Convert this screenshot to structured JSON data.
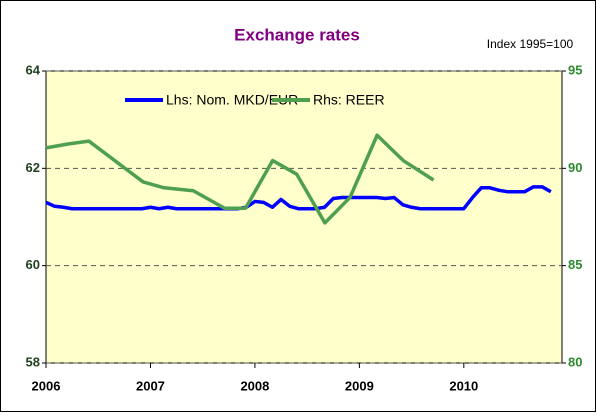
{
  "chart_data": {
    "type": "line",
    "title": "Exchange rates",
    "annotation": "Index 1995=100",
    "series": [
      {
        "name": "Lhs: Nom. MKD/EUR",
        "color": "#0000ff",
        "axis": "y",
        "x": [
          2006.0,
          2006.083,
          2006.167,
          2006.25,
          2006.333,
          2006.417,
          2006.5,
          2006.583,
          2006.667,
          2006.75,
          2006.833,
          2006.917,
          2007.0,
          2007.083,
          2007.167,
          2007.25,
          2007.333,
          2007.417,
          2007.5,
          2007.583,
          2007.667,
          2007.75,
          2007.833,
          2007.917,
          2008.0,
          2008.083,
          2008.167,
          2008.25,
          2008.333,
          2008.417,
          2008.5,
          2008.583,
          2008.667,
          2008.75,
          2008.833,
          2008.917,
          2009.0,
          2009.083,
          2009.167,
          2009.25,
          2009.333,
          2009.417,
          2009.5,
          2009.583,
          2009.667,
          2009.75,
          2009.833,
          2009.917,
          2010.0,
          2010.083,
          2010.167,
          2010.25,
          2010.333,
          2010.417,
          2010.5,
          2010.583,
          2010.667,
          2010.75,
          2010.833
        ],
        "values": [
          61.3,
          61.22,
          61.2,
          61.17,
          61.17,
          61.17,
          61.17,
          61.17,
          61.17,
          61.17,
          61.17,
          61.17,
          61.2,
          61.17,
          61.2,
          61.17,
          61.17,
          61.17,
          61.17,
          61.17,
          61.17,
          61.17,
          61.17,
          61.2,
          61.32,
          61.3,
          61.2,
          61.36,
          61.22,
          61.17,
          61.17,
          61.17,
          61.2,
          61.38,
          61.4,
          61.4,
          61.4,
          61.4,
          61.4,
          61.38,
          61.4,
          61.25,
          61.2,
          61.17,
          61.17,
          61.17,
          61.17,
          61.17,
          61.17,
          61.4,
          61.6,
          61.6,
          61.55,
          61.52,
          61.52,
          61.52,
          61.62,
          61.62,
          61.52
        ]
      },
      {
        "name": "Rhs: REER",
        "color": "#4ea04e",
        "axis": "y2",
        "x": [
          2006.0,
          2006.21,
          2006.41,
          2006.93,
          2007.13,
          2007.41,
          2007.71,
          2007.91,
          2008.17,
          2008.4,
          2008.67,
          2008.91,
          2009.17,
          2009.42,
          2009.71
        ],
        "values": [
          91.05,
          91.25,
          91.4,
          89.3,
          89.0,
          88.85,
          87.95,
          87.95,
          90.4,
          89.7,
          87.2,
          88.5,
          91.7,
          90.4,
          89.4
        ]
      }
    ],
    "xlim": [
      2006,
      2010.94
    ],
    "xticks": [
      2006,
      2007,
      2008,
      2009,
      2010
    ],
    "ylim": [
      58,
      64
    ],
    "yticks": [
      58,
      60,
      62,
      64
    ],
    "y2lim": [
      80,
      95
    ],
    "y2ticks": [
      80,
      85,
      90,
      95
    ],
    "grid": true,
    "legend": "top"
  }
}
